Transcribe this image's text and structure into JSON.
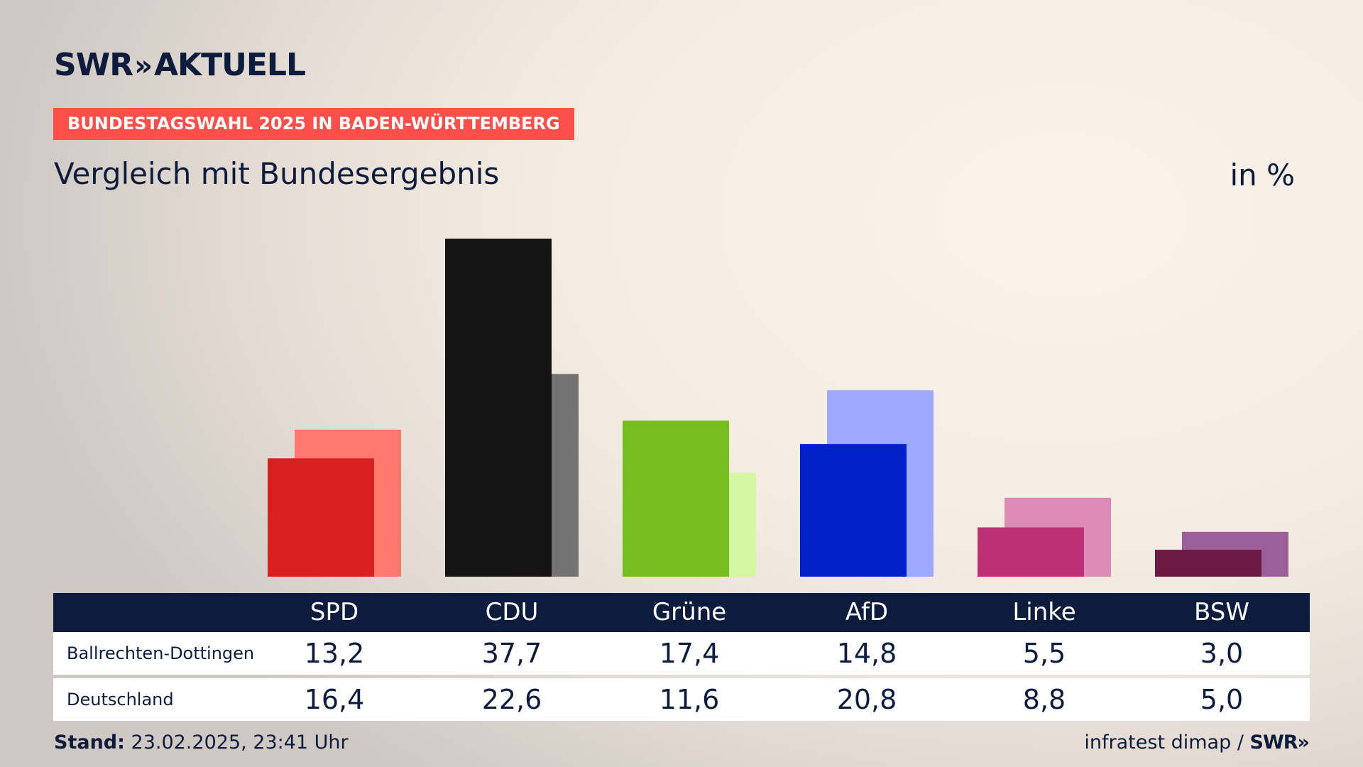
{
  "header": {
    "brand": "SWR",
    "brand_chevron": "»",
    "brand_suffix": "AKTUELL",
    "badge": "BUNDESTAGSWAHL 2025 IN BADEN-WÜRTTEMBERG",
    "subtitle": "Vergleich mit Bundesergebnis",
    "unit": "in %"
  },
  "chart_data": {
    "type": "bar",
    "categories": [
      "SPD",
      "CDU",
      "Grüne",
      "AfD",
      "Linke",
      "BSW"
    ],
    "series": [
      {
        "name": "Ballrechten-Dottingen",
        "values": [
          13.2,
          37.7,
          17.4,
          14.8,
          5.5,
          3.0
        ],
        "labels": [
          "13,2",
          "37,7",
          "17,4",
          "14,8",
          "5,5",
          "3,0"
        ],
        "colors": [
          "#d7201f",
          "#141414",
          "#78bd1f",
          "#0021c9",
          "#be3075",
          "#6d1a42"
        ]
      },
      {
        "name": "Deutschland",
        "values": [
          16.4,
          22.6,
          11.6,
          20.8,
          8.8,
          5.0
        ],
        "labels": [
          "16,4",
          "22,6",
          "11,6",
          "20,8",
          "8,8",
          "5,0"
        ],
        "colors": [
          "#ff776f",
          "#737373",
          "#d6f6a6",
          "#9da9fe",
          "#de8ab6",
          "#9b5f99"
        ]
      }
    ],
    "ylim": [
      0,
      37.7
    ]
  },
  "table": {
    "header_color": "#0d1b3d"
  },
  "footer": {
    "stand_label": "Stand:",
    "stand_value": "23.02.2025, 23:41 Uhr",
    "source": "infratest dimap /",
    "source_brand": "SWR»"
  },
  "colors": {
    "accent": "#ff4f4a",
    "navy": "#0d1b3d"
  }
}
